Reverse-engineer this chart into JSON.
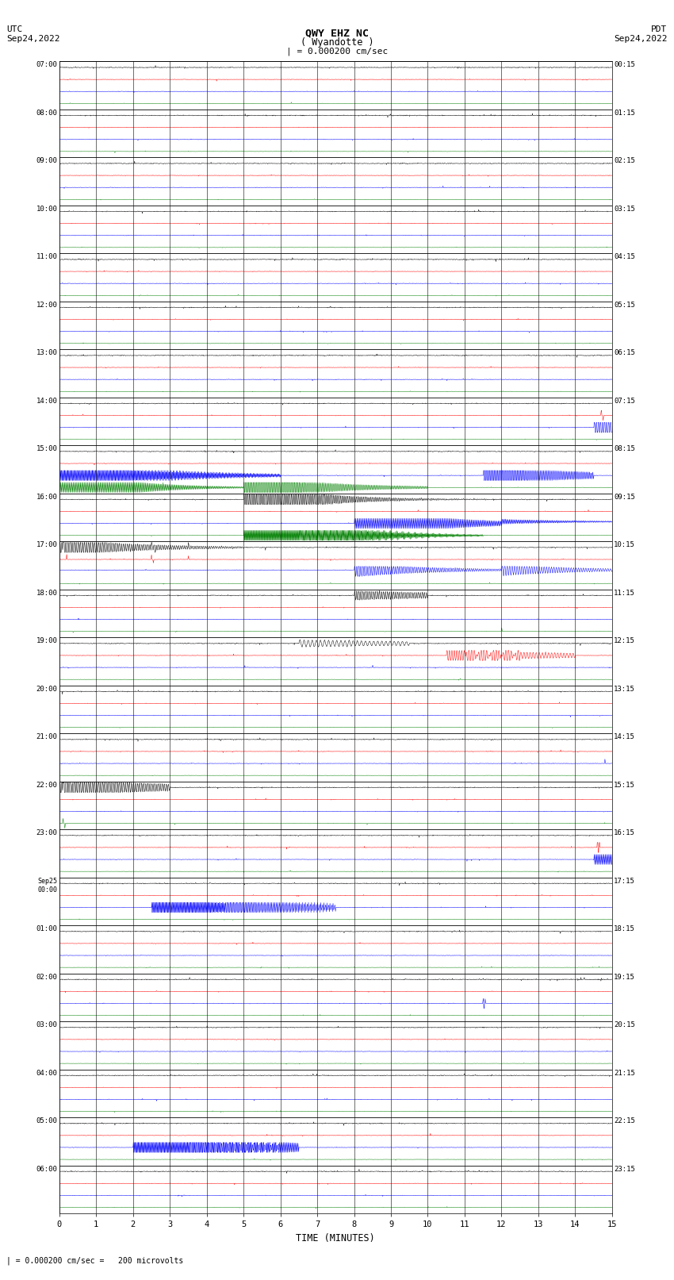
{
  "title_line1": "QWY EHZ NC",
  "title_line2": "( Wyandotte )",
  "scale_text": "| = 0.000200 cm/sec",
  "footer_text": "| = 0.000200 cm/sec =   200 microvolts",
  "utc_label": "UTC",
  "utc_date": "Sep24,2022",
  "pdt_label": "PDT",
  "pdt_date": "Sep24,2022",
  "xlabel": "TIME (MINUTES)",
  "bg_color": "#ffffff",
  "left_labels": [
    "07:00",
    "08:00",
    "09:00",
    "10:00",
    "11:00",
    "12:00",
    "13:00",
    "14:00",
    "15:00",
    "16:00",
    "17:00",
    "18:00",
    "19:00",
    "20:00",
    "21:00",
    "22:00",
    "23:00",
    "Sep25\n00:00",
    "01:00",
    "02:00",
    "03:00",
    "04:00",
    "05:00",
    "06:00"
  ],
  "right_labels": [
    "00:15",
    "01:15",
    "02:15",
    "03:15",
    "04:15",
    "05:15",
    "06:15",
    "07:15",
    "08:15",
    "09:15",
    "10:15",
    "11:15",
    "12:15",
    "13:15",
    "14:15",
    "15:15",
    "16:15",
    "17:15",
    "18:15",
    "19:15",
    "20:15",
    "21:15",
    "22:15",
    "23:15"
  ],
  "num_rows": 24,
  "traces_per_row": 4,
  "minutes": 15,
  "x_ticks": [
    0,
    1,
    2,
    3,
    4,
    5,
    6,
    7,
    8,
    9,
    10,
    11,
    12,
    13,
    14,
    15
  ],
  "trace_colors": [
    "black",
    "red",
    "blue",
    "green"
  ]
}
